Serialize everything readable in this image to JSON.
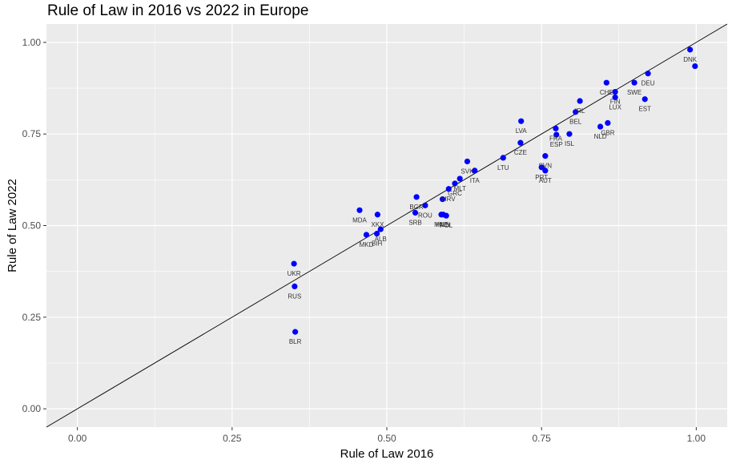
{
  "chart_data": {
    "type": "scatter",
    "title": "Rule of Law in 2016 vs 2022 in Europe",
    "xlabel": "Rule of Law 2016",
    "ylabel": "Rule of Law 2022",
    "xlim": [
      -0.05,
      1.05
    ],
    "ylim": [
      -0.05,
      1.05
    ],
    "xticks": [
      0.0,
      0.25,
      0.5,
      0.75,
      1.0
    ],
    "yticks": [
      0.0,
      0.25,
      0.5,
      0.75,
      1.0
    ],
    "xtick_labels": [
      "0.00",
      "0.25",
      "0.50",
      "0.75",
      "1.00"
    ],
    "ytick_labels": [
      "0.00",
      "0.25",
      "0.50",
      "0.75",
      "1.00"
    ],
    "grid": true,
    "point_color": "#0000ff",
    "reference_line": {
      "type": "identity",
      "color": "#000000"
    },
    "points": [
      {
        "label": "DNK",
        "x": 0.99,
        "y": 0.98
      },
      {
        "label": "",
        "x": 0.998,
        "y": 0.935
      },
      {
        "label": "DEU",
        "x": 0.922,
        "y": 0.915
      },
      {
        "label": "SWE",
        "x": 0.9,
        "y": 0.89
      },
      {
        "label": "CHE",
        "x": 0.855,
        "y": 0.89
      },
      {
        "label": "FIN",
        "x": 0.869,
        "y": 0.865
      },
      {
        "label": "LUX",
        "x": 0.869,
        "y": 0.85
      },
      {
        "label": "EST",
        "x": 0.917,
        "y": 0.845
      },
      {
        "label": "IRL",
        "x": 0.812,
        "y": 0.84
      },
      {
        "label": "BEL",
        "x": 0.805,
        "y": 0.81
      },
      {
        "label": "GBR",
        "x": 0.857,
        "y": 0.78
      },
      {
        "label": "NLD",
        "x": 0.845,
        "y": 0.77
      },
      {
        "label": "ISL",
        "x": 0.795,
        "y": 0.75
      },
      {
        "label": "FRA",
        "x": 0.773,
        "y": 0.765
      },
      {
        "label": "ESP",
        "x": 0.774,
        "y": 0.748
      },
      {
        "label": "LVA",
        "x": 0.717,
        "y": 0.785
      },
      {
        "label": "CZE",
        "x": 0.716,
        "y": 0.726
      },
      {
        "label": "LTU",
        "x": 0.688,
        "y": 0.685
      },
      {
        "label": "SVN",
        "x": 0.756,
        "y": 0.69
      },
      {
        "label": "PRT",
        "x": 0.75,
        "y": 0.659
      },
      {
        "label": "AUT",
        "x": 0.756,
        "y": 0.65
      },
      {
        "label": "SVK",
        "x": 0.63,
        "y": 0.675
      },
      {
        "label": "ITA",
        "x": 0.642,
        "y": 0.65
      },
      {
        "label": "MLT",
        "x": 0.618,
        "y": 0.628
      },
      {
        "label": "GRC",
        "x": 0.61,
        "y": 0.615
      },
      {
        "label": "HRV",
        "x": 0.6,
        "y": 0.6
      },
      {
        "label": "",
        "x": 0.59,
        "y": 0.572
      },
      {
        "label": "BGR",
        "x": 0.548,
        "y": 0.578
      },
      {
        "label": "ROU",
        "x": 0.562,
        "y": 0.555
      },
      {
        "label": "SRB",
        "x": 0.546,
        "y": 0.535
      },
      {
        "label": "MNE",
        "x": 0.588,
        "y": 0.53
      },
      {
        "label": "POL",
        "x": 0.596,
        "y": 0.527
      },
      {
        "label": "HUN",
        "x": 0.591,
        "y": 0.53
      },
      {
        "label": "MDA",
        "x": 0.456,
        "y": 0.542
      },
      {
        "label": "XKX",
        "x": 0.485,
        "y": 0.53
      },
      {
        "label": "ALB",
        "x": 0.49,
        "y": 0.49
      },
      {
        "label": "MKD",
        "x": 0.467,
        "y": 0.475
      },
      {
        "label": "BIH",
        "x": 0.484,
        "y": 0.478
      },
      {
        "label": "UKR",
        "x": 0.35,
        "y": 0.396
      },
      {
        "label": "RUS",
        "x": 0.351,
        "y": 0.334
      },
      {
        "label": "BLR",
        "x": 0.352,
        "y": 0.21
      }
    ]
  }
}
